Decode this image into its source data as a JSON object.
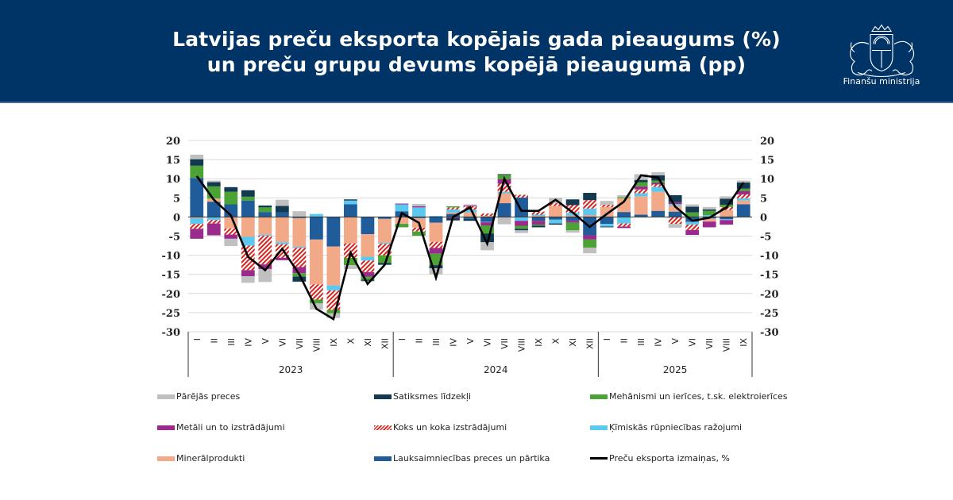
{
  "header": {
    "title_line1": "Latvijas preču eksporta kopējais gada pieaugums (%)",
    "title_line2": "un preču grupu devums kopējā pieaugumā (pp)",
    "logo_icon": "latvia-coat-of-arms-icon",
    "logo_text": "Finanšu ministrija",
    "background_color": "#003366"
  },
  "chart_data": {
    "type": "bar",
    "stacked": true,
    "title": "Latvijas preču eksporta kopējais gada pieaugums (%) un preču grupu devums kopējā pieaugumā (pp)",
    "xlabel": "",
    "ylabel": "",
    "ylim": [
      -30,
      20
    ],
    "yticks": [
      20,
      15,
      10,
      5,
      0,
      -5,
      -10,
      -15,
      -20,
      -25,
      -30
    ],
    "y_tick_labels": [
      "20",
      "15",
      "10",
      "5",
      "0",
      "-5",
      "-10",
      "-15",
      "-20",
      "-25",
      "-30"
    ],
    "secondary_y_axis": true,
    "grid": true,
    "legend_position": "bottom",
    "categories": [
      "I",
      "II",
      "III",
      "IV",
      "V",
      "VI",
      "VII",
      "VIII",
      "IX",
      "X",
      "XI",
      "XII",
      "I",
      "II",
      "III",
      "IV",
      "V",
      "VI",
      "VII",
      "VIII",
      "IX",
      "X",
      "XI",
      "XII",
      "I",
      "II",
      "III",
      "IV",
      "V",
      "VI",
      "VII",
      "VIII",
      "IX"
    ],
    "groups": [
      {
        "label": "2023",
        "count": 12
      },
      {
        "label": "2024",
        "count": 12
      },
      {
        "label": "2025",
        "count": 9
      }
    ],
    "series": [
      {
        "name": "Lauksaimniecības preces un pārtika",
        "color": "#1f5c99",
        "pattern": "solid",
        "values": [
          10.2,
          4.0,
          3.3,
          4.3,
          1.3,
          1.2,
          -0.3,
          -5.9,
          -7.7,
          3.3,
          -4.5,
          -0.5,
          1.5,
          -0.3,
          -1.5,
          0.8,
          -0.5,
          -1.3,
          3.6,
          5.1,
          -1.0,
          -0.7,
          -1.0,
          -4.8,
          -1.8,
          1.3,
          0.6,
          1.6,
          1.4,
          -1.3,
          -0.4,
          -0.6,
          3.3
        ]
      },
      {
        "name": "Minerālprodukti",
        "color": "#f2a987",
        "pattern": "solid",
        "values": [
          -0.3,
          0.8,
          -3.0,
          -5.2,
          -4.6,
          -6.6,
          -7.5,
          -11.7,
          -10.2,
          -6.9,
          -5.9,
          -6.2,
          -1.8,
          -2.5,
          -5.0,
          0.4,
          1.2,
          0.3,
          2.6,
          0.0,
          0.3,
          2.9,
          0.4,
          0.5,
          2.6,
          3.6,
          4.8,
          5.0,
          1.6,
          0.0,
          -0.8,
          1.8,
          1.0
        ]
      },
      {
        "name": "Ķīmiskās rūpniecības ražojumi",
        "color": "#5bc8f0",
        "pattern": "solid",
        "values": [
          -1.5,
          -0.8,
          0.0,
          -2.3,
          -0.3,
          -0.5,
          -0.3,
          0.8,
          -1.3,
          1.0,
          -1.0,
          -0.3,
          1.8,
          2.5,
          0.3,
          0.8,
          0.7,
          -0.1,
          0.4,
          -1.0,
          0.3,
          -1.0,
          0.7,
          1.7,
          -0.7,
          -1.7,
          0.8,
          1.3,
          0.4,
          -0.7,
          0.5,
          -0.2,
          0.6
        ]
      },
      {
        "name": "Koks un koka izstrādājumi",
        "color": "#d9221c",
        "pattern": "hatched",
        "values": [
          -1.3,
          -0.9,
          -1.6,
          -6.4,
          -7.5,
          -3.6,
          -5.0,
          -4.0,
          -5.1,
          -3.8,
          -3.0,
          -3.0,
          0.0,
          -1.0,
          -1.6,
          0.5,
          0.9,
          0.6,
          2.1,
          0.7,
          0.8,
          0.7,
          2.0,
          2.2,
          0.6,
          -0.8,
          1.0,
          0.6,
          -1.8,
          -1.4,
          0.0,
          0.8,
          1.0
        ]
      },
      {
        "name": "Metāli un to izstrādājumi",
        "color": "#9b2a8d",
        "pattern": "solid",
        "values": [
          -2.6,
          -3.1,
          -1.1,
          -1.6,
          -1.2,
          -0.6,
          -1.6,
          0.0,
          0.0,
          0.0,
          -1.2,
          0.0,
          0.2,
          0.3,
          -1.5,
          -0.3,
          0.2,
          -0.8,
          1.2,
          -1.3,
          -1.0,
          0.0,
          -0.5,
          -1.1,
          0.0,
          -0.4,
          0.8,
          0.4,
          0.5,
          -1.3,
          -1.5,
          -1.2,
          0.9
        ]
      },
      {
        "name": "Mehānismi un ierīces, t.sk. elektroierīces",
        "color": "#4ca335",
        "pattern": "solid",
        "values": [
          3.2,
          3.2,
          3.3,
          1.0,
          1.2,
          0.0,
          -0.9,
          -1.0,
          -0.9,
          -1.9,
          -0.8,
          -2.0,
          -0.9,
          -1.1,
          -3.0,
          0.3,
          0.0,
          -2.1,
          1.1,
          -0.8,
          -0.3,
          0.0,
          -2.0,
          -2.1,
          0.0,
          0.3,
          1.1,
          0.6,
          0.0,
          1.2,
          1.1,
          0.6,
          0.6
        ]
      },
      {
        "name": "Satiksmes līdzekļi",
        "color": "#12394f",
        "pattern": "solid",
        "values": [
          1.7,
          1.1,
          1.2,
          1.7,
          0.5,
          1.7,
          -1.3,
          0.0,
          0.0,
          0.3,
          -0.3,
          -0.5,
          0.0,
          0.0,
          -0.8,
          -0.6,
          -0.5,
          -2.3,
          0.2,
          -0.4,
          -0.4,
          -0.3,
          1.5,
          1.9,
          -0.2,
          0.0,
          0.6,
          1.4,
          1.8,
          1.5,
          0.4,
          1.6,
          1.6
        ]
      },
      {
        "name": "Pārējās preces",
        "color": "#c0c0c0",
        "pattern": "solid",
        "values": [
          1.2,
          0.4,
          -1.9,
          -1.7,
          -3.4,
          1.6,
          1.5,
          -1.6,
          -1.2,
          -1.0,
          -0.2,
          0.0,
          0.0,
          0.6,
          -1.6,
          0.0,
          0.3,
          -2.1,
          -1.9,
          -0.7,
          0.0,
          1.4,
          -0.6,
          -1.5,
          1.0,
          0.5,
          1.5,
          0.8,
          -1.0,
          0.6,
          0.6,
          0.6,
          0.5
        ]
      },
      {
        "name": "Preču eksporta izmaiņas, %",
        "color": "#000000",
        "type": "line",
        "values": [
          10.7,
          4.5,
          0.4,
          -10.4,
          -13.9,
          -8.3,
          -15.0,
          -24.0,
          -26.7,
          -9.3,
          -17.5,
          -12.5,
          1.0,
          -1.5,
          -15.9,
          0.0,
          2.5,
          -7.0,
          10.0,
          1.6,
          1.6,
          4.5,
          1.2,
          -2.6,
          0.8,
          4.0,
          10.9,
          10.3,
          2.7,
          -1.0,
          -0.2,
          2.5,
          9.0
        ]
      }
    ]
  },
  "legend": {
    "items": [
      {
        "label": "Pārējās preces",
        "color": "#c0c0c0",
        "kind": "swatch"
      },
      {
        "label": "Satiksmes līdzekļi",
        "color": "#12394f",
        "kind": "swatch"
      },
      {
        "label": "Mehānismi un ierīces, t.sk. elektroierīces",
        "color": "#4ca335",
        "kind": "swatch"
      },
      {
        "label": "Metāli un to izstrādājumi",
        "color": "#9b2a8d",
        "kind": "swatch"
      },
      {
        "label": "Koks un koka izstrādājumi",
        "color": "#d9221c",
        "kind": "hatch"
      },
      {
        "label": "Ķīmiskās rūpniecības ražojumi",
        "color": "#5bc8f0",
        "kind": "swatch"
      },
      {
        "label": "Minerālprodukti",
        "color": "#f2a987",
        "kind": "swatch"
      },
      {
        "label": "Lauksaimniecības preces un pārtika",
        "color": "#1f5c99",
        "kind": "swatch"
      },
      {
        "label": "Preču eksporta izmaiņas, %",
        "color": "#000000",
        "kind": "line"
      }
    ]
  }
}
